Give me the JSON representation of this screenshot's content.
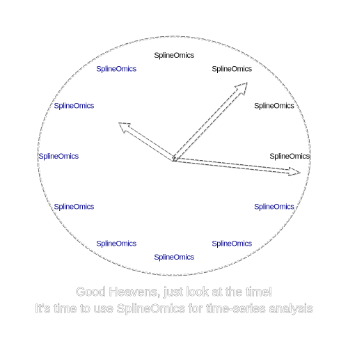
{
  "clock": {
    "hour_labels": [
      "SplineOmics",
      "SplineOmics",
      "SplineOmics",
      "SplineOmics",
      "SplineOmics",
      "SplineOmics",
      "SplineOmics",
      "SplineOmics",
      "SplineOmics",
      "SplineOmics",
      "SplineOmics",
      "SplineOmics"
    ],
    "label_color": "#00008b",
    "highlighted_label_color": "#000000",
    "highlighted_hours": [
      12,
      1,
      2,
      3
    ],
    "time": {
      "hour": 10,
      "minute": 7,
      "second": 16
    }
  },
  "caption": {
    "line1": "Good Heavens, just look at the time!",
    "line2": "It’s time to use SplineOmics for time-series analysis"
  }
}
